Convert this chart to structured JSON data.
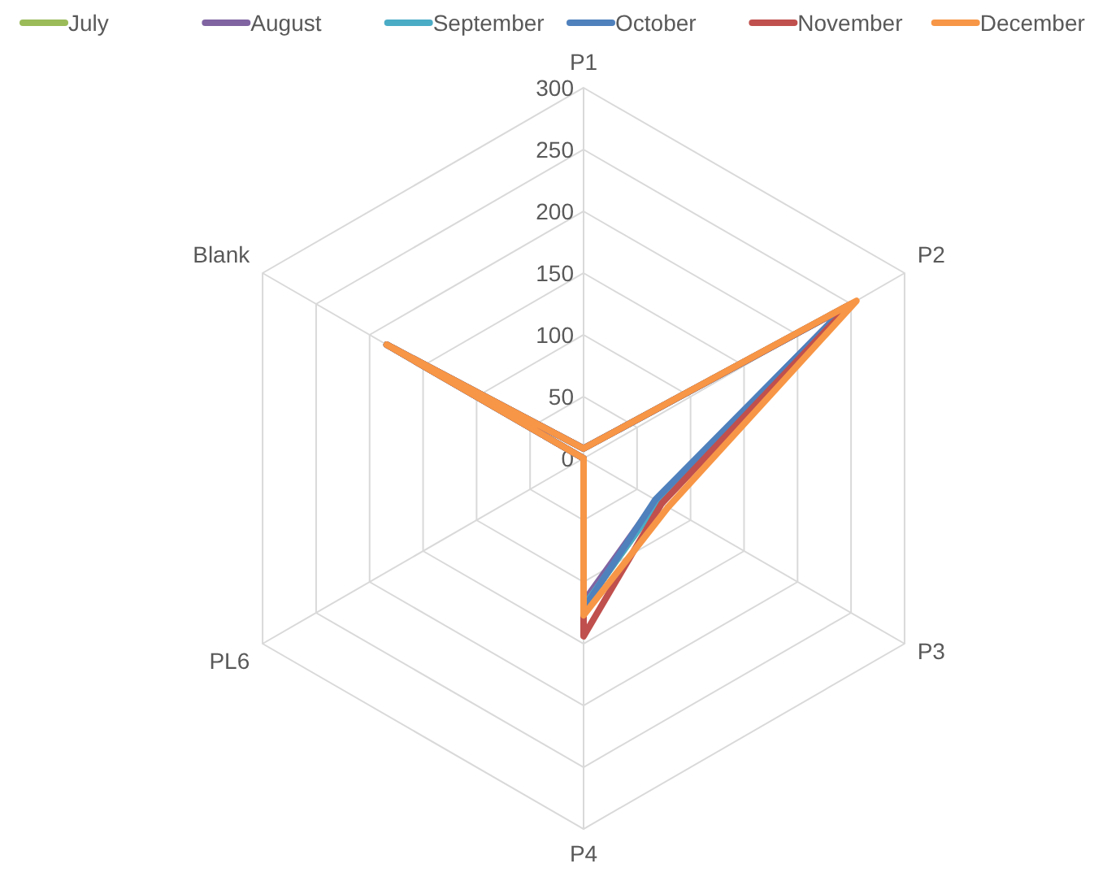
{
  "chart_data": {
    "type": "radar",
    "categories": [
      "P1",
      "P2",
      "P3",
      "P4",
      "PL6",
      "Blank"
    ],
    "series": [
      {
        "name": "July",
        "color": "#9bbb59",
        "values": [
          8,
          245,
          70,
          120,
          0,
          184
        ]
      },
      {
        "name": "August",
        "color": "#8064a2",
        "values": [
          8,
          245,
          68,
          116,
          0,
          184
        ]
      },
      {
        "name": "September",
        "color": "#4bacc6",
        "values": [
          8,
          248,
          70,
          120,
          0,
          184
        ]
      },
      {
        "name": "October",
        "color": "#4f81bd",
        "values": [
          8,
          245,
          67,
          122,
          0,
          184
        ]
      },
      {
        "name": "November",
        "color": "#c0504d",
        "values": [
          8,
          250,
          73,
          144,
          0,
          184
        ]
      },
      {
        "name": "December",
        "color": "#f79646",
        "values": [
          8,
          255,
          79,
          127,
          0,
          184
        ]
      }
    ],
    "ylim": [
      0,
      300
    ],
    "yticks": [
      0,
      50,
      100,
      150,
      200,
      250,
      300
    ],
    "grid": true,
    "legend": "top",
    "marker": "none",
    "line_style": "solid"
  }
}
